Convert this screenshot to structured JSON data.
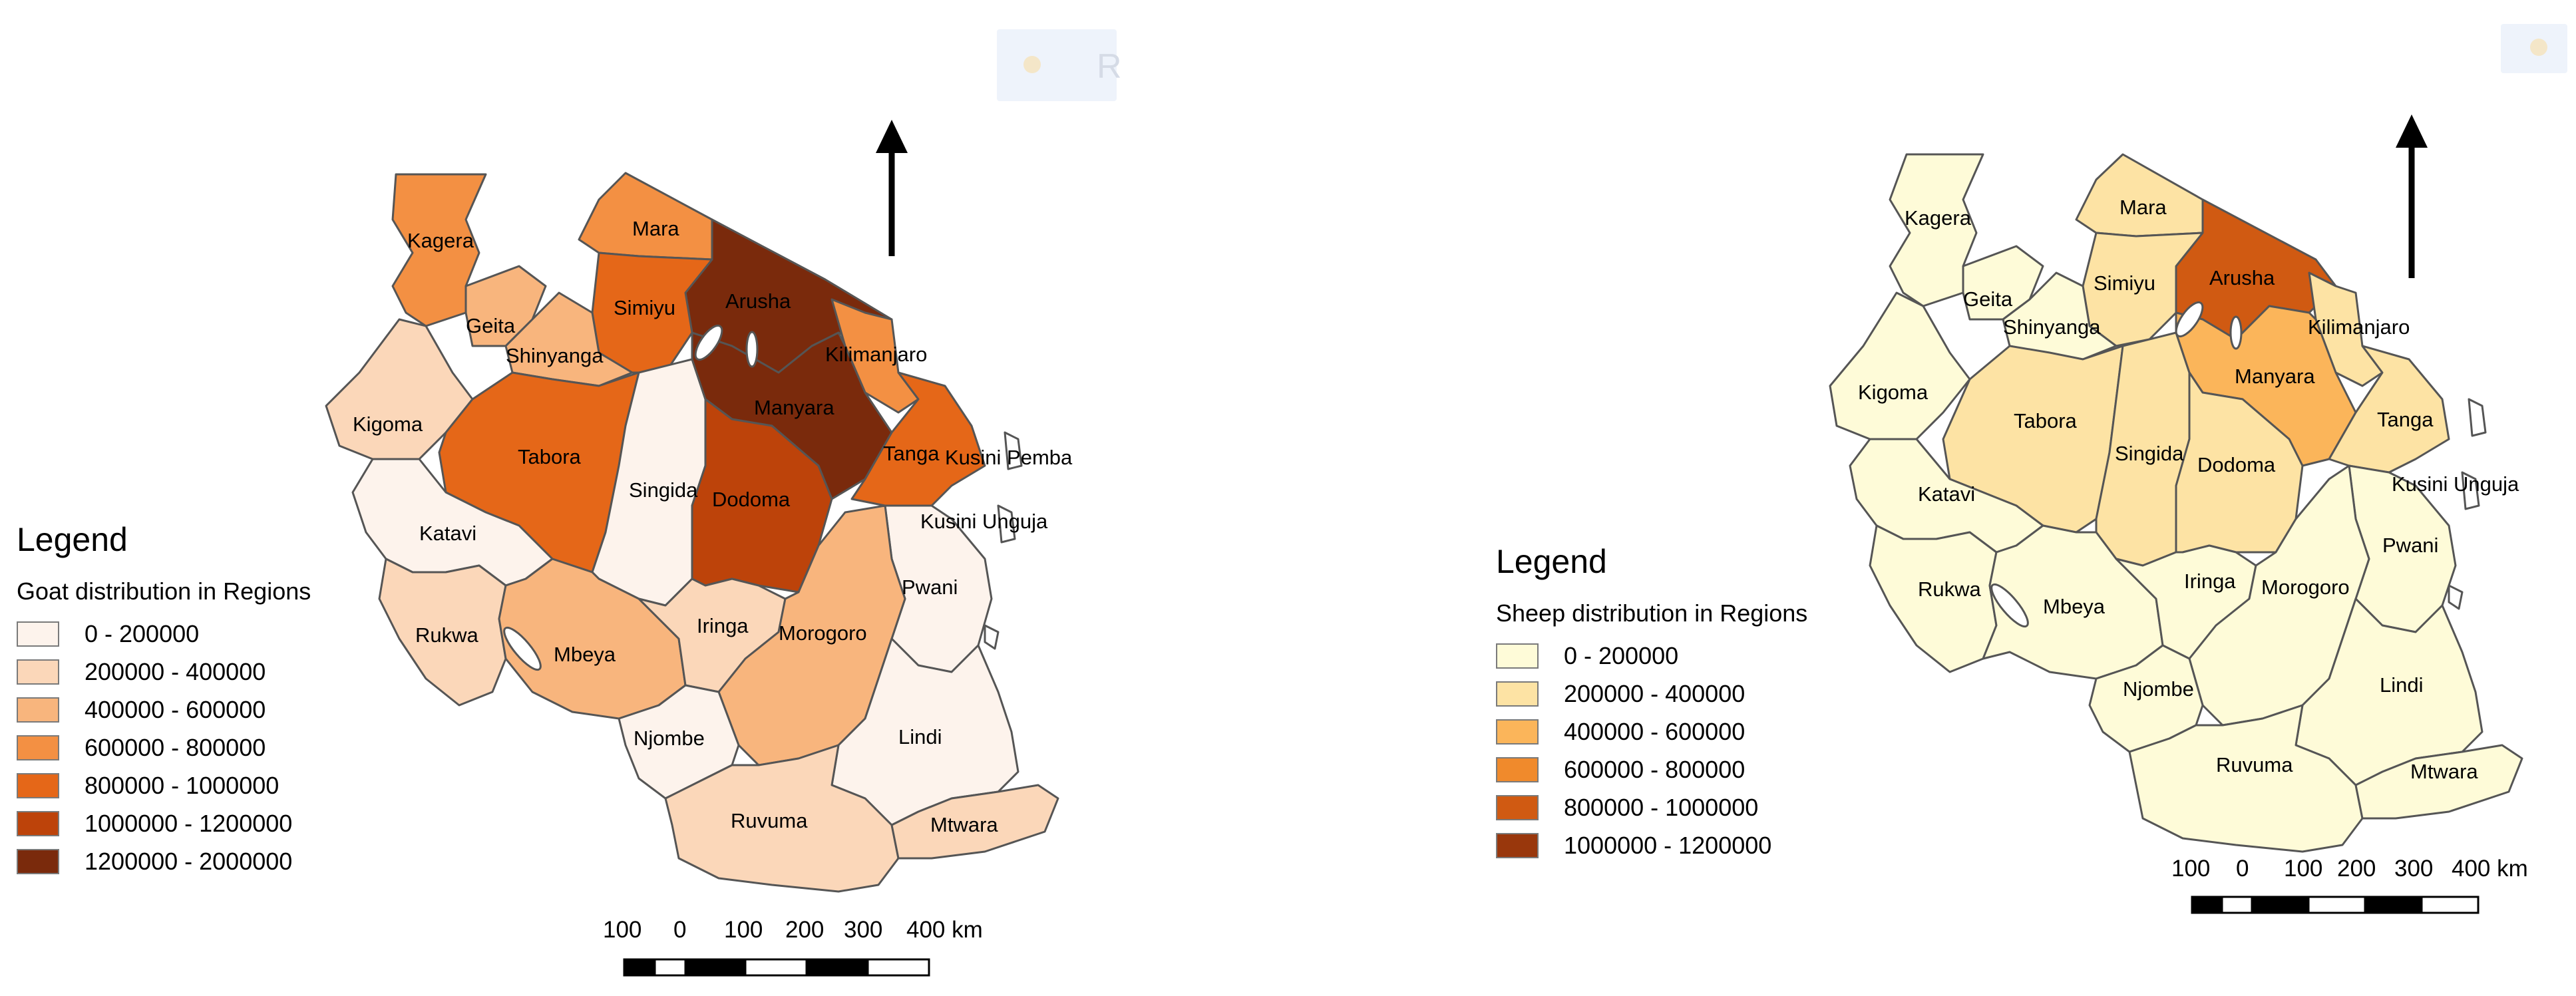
{
  "goat_map": {
    "legend_title": "Legend",
    "legend_subtitle": "Goat distribution in Regions",
    "classes": [
      {
        "label": "0 - 200000",
        "color": "#fdf3ec"
      },
      {
        "label": "200000 - 400000",
        "color": "#fbd7b9"
      },
      {
        "label": "400000 - 600000",
        "color": "#f8b57d"
      },
      {
        "label": "600000 - 800000",
        "color": "#f39043"
      },
      {
        "label": "800000 - 1000000",
        "color": "#e56718"
      },
      {
        "label": "1000000 - 1200000",
        "color": "#bd430a"
      },
      {
        "label": "1200000 - 2000000",
        "color": "#7a2a0c"
      }
    ],
    "regions": {
      "kagera": "Kagera",
      "mara": "Mara",
      "arusha": "Arusha",
      "simiyu": "Simiyu",
      "geita": "Geita",
      "shinyanga": "Shinyanga",
      "kilimanjaro": "Kilimanjaro",
      "kigoma": "Kigoma",
      "tabora": "Tabora",
      "singida": "Singida",
      "manyara": "Manyara",
      "tanga": "Tanga",
      "kusini_pemba": "Kusini Pemba",
      "kusini_unguja": "Kusini Unguja",
      "katavi": "Katavi",
      "dodoma": "Dodoma",
      "pwani": "Pwani",
      "rukwa": "Rukwa",
      "mbeya": "Mbeya",
      "iringa": "Iringa",
      "morogoro": "Morogoro",
      "njombe": "Njombe",
      "lindi": "Lindi",
      "ruvuma": "Ruvuma",
      "mtwara": "Mtwara"
    },
    "scale_labels": [
      "100",
      "0",
      "100",
      "200",
      "300",
      "400 km"
    ],
    "badge_letter": "R"
  },
  "sheep_map": {
    "legend_title": "Legend",
    "legend_subtitle": "Sheep distribution in Regions",
    "classes": [
      {
        "label": "0 - 200000",
        "color": "#fefbd8"
      },
      {
        "label": "200000 - 400000",
        "color": "#fde3a4"
      },
      {
        "label": "400000 - 600000",
        "color": "#fbb55a"
      },
      {
        "label": "600000 - 800000",
        "color": "#f08a2c"
      },
      {
        "label": "800000 - 1000000",
        "color": "#d05a12"
      },
      {
        "label": "1000000 - 1200000",
        "color": "#99370c"
      }
    ],
    "regions": {
      "kagera": "Kagera",
      "mara": "Mara",
      "arusha": "Arusha",
      "simiyu": "Simiyu",
      "geita": "Geita",
      "shinyanga": "Shinyanga",
      "kilimanjaro": "Kilimanjaro",
      "kigoma": "Kigoma",
      "tabora": "Tabora",
      "singida": "Singida",
      "manyara": "Manyara",
      "tanga": "Tanga",
      "kusini_unguja": "Kusini Unguja",
      "katavi": "Katavi",
      "dodoma": "Dodoma",
      "pwani": "Pwani",
      "rukwa": "Rukwa",
      "mbeya": "Mbeya",
      "iringa": "Iringa",
      "morogoro": "Morogoro",
      "njombe": "Njombe",
      "lindi": "Lindi",
      "ruvuma": "Ruvuma",
      "mtwara": "Mtwara"
    },
    "scale_labels": [
      "100",
      "0",
      "100",
      "200",
      "300",
      "400 km"
    ]
  },
  "icons": [
    "north-arrow-icon"
  ]
}
